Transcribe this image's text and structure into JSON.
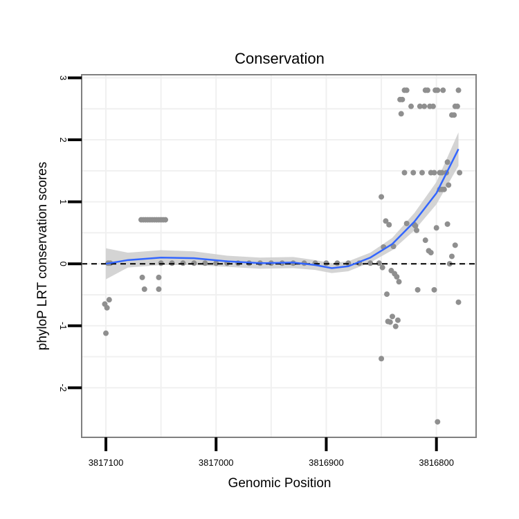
{
  "chart_data": {
    "type": "scatter",
    "title": "Conservation",
    "xlabel": "Genomic Position",
    "ylabel": "phyloP LRT conservation scores",
    "x_reversed": true,
    "xlim": [
      3817122,
      3816764
    ],
    "ylim": [
      -2.8,
      3.05
    ],
    "x_ticks": [
      3817100,
      3817000,
      3816900,
      3816800
    ],
    "x_tick_labels": [
      "3817100",
      "3817000",
      "3816900",
      "3816800"
    ],
    "y_ticks": [
      3,
      2,
      1,
      0,
      -1,
      -2
    ],
    "y_tick_labels": [
      "3",
      "2",
      "1",
      "0",
      "-1",
      "-2"
    ],
    "grid": true,
    "reference_line": {
      "y": 0,
      "style": "dashed"
    },
    "colors": {
      "points": "#8f8f8f",
      "smooth": "#3366ff",
      "ribbon": "#cccccc",
      "panel_border": "#7f7f7f",
      "grid": "#f0f0f0"
    },
    "series": [
      {
        "kind": "points",
        "points": [
          [
            3817101,
            -0.65
          ],
          [
            3817099,
            -0.71
          ],
          [
            3817097,
            -0.58
          ],
          [
            3817100,
            -1.12
          ],
          [
            3817098,
            0.01
          ],
          [
            3817096,
            0.01
          ],
          [
            3817068,
            0.71
          ],
          [
            3817066,
            0.71
          ],
          [
            3817064,
            0.71
          ],
          [
            3817062,
            0.71
          ],
          [
            3817060,
            0.71
          ],
          [
            3817058,
            0.71
          ],
          [
            3817056,
            0.71
          ],
          [
            3817054,
            0.71
          ],
          [
            3817052,
            0.71
          ],
          [
            3817050,
            0.71
          ],
          [
            3817048,
            0.71
          ],
          [
            3817046,
            0.71
          ],
          [
            3817067,
            -0.22
          ],
          [
            3817065,
            -0.41
          ],
          [
            3817052,
            -0.22
          ],
          [
            3817052,
            -0.41
          ],
          [
            3817050,
            0.01
          ],
          [
            3817040,
            0.01
          ],
          [
            3817030,
            0.01
          ],
          [
            3817020,
            0.01
          ],
          [
            3817010,
            0.01
          ],
          [
            3817000,
            0.01
          ],
          [
            3816990,
            0.01
          ],
          [
            3816980,
            0.01
          ],
          [
            3816970,
            0.01
          ],
          [
            3816960,
            0.01
          ],
          [
            3816950,
            0.01
          ],
          [
            3816940,
            0.01
          ],
          [
            3816930,
            0.01
          ],
          [
            3816920,
            0.01
          ],
          [
            3816910,
            0.01
          ],
          [
            3816900,
            0.01
          ],
          [
            3816890,
            0.01
          ],
          [
            3816880,
            0.01
          ],
          [
            3816870,
            0.01
          ],
          [
            3816860,
            0.01
          ],
          [
            3816852,
            0.01
          ],
          [
            3816850,
            1.08
          ],
          [
            3816848,
            0.27
          ],
          [
            3816849,
            -0.06
          ],
          [
            3816846,
            0.69
          ],
          [
            3816845,
            -0.49
          ],
          [
            3816844,
            -0.93
          ],
          [
            3816842,
            -0.94
          ],
          [
            3816843,
            0.63
          ],
          [
            3816841,
            -0.11
          ],
          [
            3816840,
            -0.85
          ],
          [
            3816839,
            0.28
          ],
          [
            3816838,
            -0.16
          ],
          [
            3816836,
            -0.21
          ],
          [
            3816837,
            -1.01
          ],
          [
            3816835,
            -0.91
          ],
          [
            3816834,
            -0.29
          ],
          [
            3816850,
            -1.53
          ],
          [
            3816833,
            2.65
          ],
          [
            3816831,
            2.65
          ],
          [
            3816832,
            2.42
          ],
          [
            3816829,
            2.8
          ],
          [
            3816827,
            2.8
          ],
          [
            3816829,
            1.47
          ],
          [
            3816827,
            0.65
          ],
          [
            3816823,
            2.54
          ],
          [
            3816821,
            1.47
          ],
          [
            3816819,
            0.61
          ],
          [
            3816820,
            0.63
          ],
          [
            3816818,
            0.54
          ],
          [
            3816817,
            -0.42
          ],
          [
            3816815,
            2.54
          ],
          [
            3816813,
            1.47
          ],
          [
            3816811,
            2.54
          ],
          [
            3816810,
            2.8
          ],
          [
            3816808,
            2.8
          ],
          [
            3816806,
            2.54
          ],
          [
            3816810,
            0.38
          ],
          [
            3816807,
            0.21
          ],
          [
            3816805,
            0.18
          ],
          [
            3816803,
            2.54
          ],
          [
            3816801,
            2.8
          ],
          [
            3816799,
            2.8
          ],
          [
            3816805,
            1.47
          ],
          [
            3816802,
            1.47
          ],
          [
            3816800,
            0.58
          ],
          [
            3816802,
            -0.42
          ],
          [
            3816799,
            -2.55
          ],
          [
            3816797,
            1.47
          ],
          [
            3816795,
            1.47
          ],
          [
            3816797,
            1.2
          ],
          [
            3816795,
            1.2
          ],
          [
            3816794,
            2.8
          ],
          [
            3816793,
            1.2
          ],
          [
            3816791,
            1.47
          ],
          [
            3816790,
            1.64
          ],
          [
            3816789,
            1.27
          ],
          [
            3816790,
            0.64
          ],
          [
            3816788,
            0.0
          ],
          [
            3816786,
            2.4
          ],
          [
            3816784,
            2.4
          ],
          [
            3816786,
            0.12
          ],
          [
            3816783,
            2.54
          ],
          [
            3816781,
            2.54
          ],
          [
            3816783,
            0.3
          ],
          [
            3816780,
            2.8
          ],
          [
            3816779,
            1.47
          ],
          [
            3816780,
            -0.62
          ]
        ]
      },
      {
        "kind": "smooth",
        "points": [
          [
            3817100,
            0.0
          ],
          [
            3817080,
            0.06
          ],
          [
            3817050,
            0.1
          ],
          [
            3817020,
            0.09
          ],
          [
            3816990,
            0.04
          ],
          [
            3816960,
            0.01
          ],
          [
            3816930,
            0.02
          ],
          [
            3816910,
            -0.02
          ],
          [
            3816895,
            -0.07
          ],
          [
            3816880,
            -0.04
          ],
          [
            3816860,
            0.1
          ],
          [
            3816840,
            0.32
          ],
          [
            3816820,
            0.68
          ],
          [
            3816800,
            1.14
          ],
          [
            3816780,
            1.85
          ]
        ],
        "band": [
          [
            3817100,
            -0.25,
            0.25
          ],
          [
            3817080,
            -0.06,
            0.18
          ],
          [
            3817050,
            -0.02,
            0.22
          ],
          [
            3817020,
            -0.02,
            0.2
          ],
          [
            3816990,
            -0.05,
            0.13
          ],
          [
            3816960,
            -0.08,
            0.1
          ],
          [
            3816930,
            -0.07,
            0.11
          ],
          [
            3816910,
            -0.1,
            0.06
          ],
          [
            3816895,
            -0.15,
            0.01
          ],
          [
            3816880,
            -0.12,
            0.04
          ],
          [
            3816860,
            0.02,
            0.18
          ],
          [
            3816840,
            0.22,
            0.42
          ],
          [
            3816820,
            0.54,
            0.82
          ],
          [
            3816800,
            0.96,
            1.32
          ],
          [
            3816780,
            1.58,
            2.12
          ]
        ]
      }
    ]
  }
}
